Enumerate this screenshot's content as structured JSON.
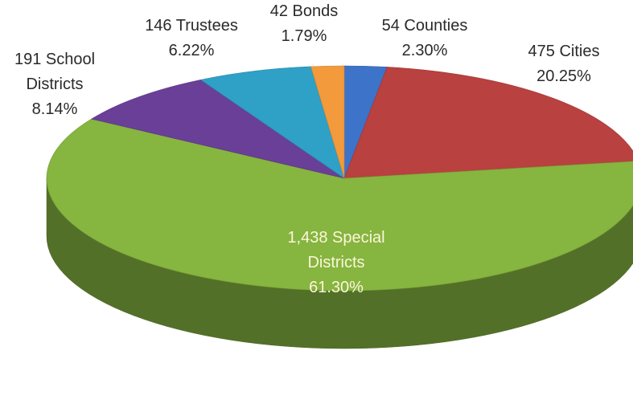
{
  "chart_data": {
    "type": "pie",
    "title": "",
    "slices": [
      {
        "label": [
          "54 Counties",
          "2.30%"
        ],
        "name": "Counties",
        "count": 54,
        "percent": 2.3,
        "color": "#3d73c9"
      },
      {
        "label": [
          "475 Cities",
          "20.25%"
        ],
        "name": "Cities",
        "count": 475,
        "percent": 20.25,
        "color": "#b9413f"
      },
      {
        "label": [
          "1,438 Special",
          "Districts",
          "61.30%"
        ],
        "name": "Special Districts",
        "count": 1438,
        "percent": 61.3,
        "color": "#86b540"
      },
      {
        "label": [
          "191 School",
          "Districts",
          "8.14%"
        ],
        "name": "School Districts",
        "count": 191,
        "percent": 8.14,
        "color": "#6a3f97"
      },
      {
        "label": [
          "146 Trustees",
          "6.22%"
        ],
        "name": "Trustees",
        "count": 146,
        "percent": 6.22,
        "color": "#2fa0c6"
      },
      {
        "label": [
          "42 Bonds",
          "1.79%"
        ],
        "name": "Bonds",
        "count": 42,
        "percent": 1.79,
        "color": "#f39a3c"
      }
    ]
  }
}
